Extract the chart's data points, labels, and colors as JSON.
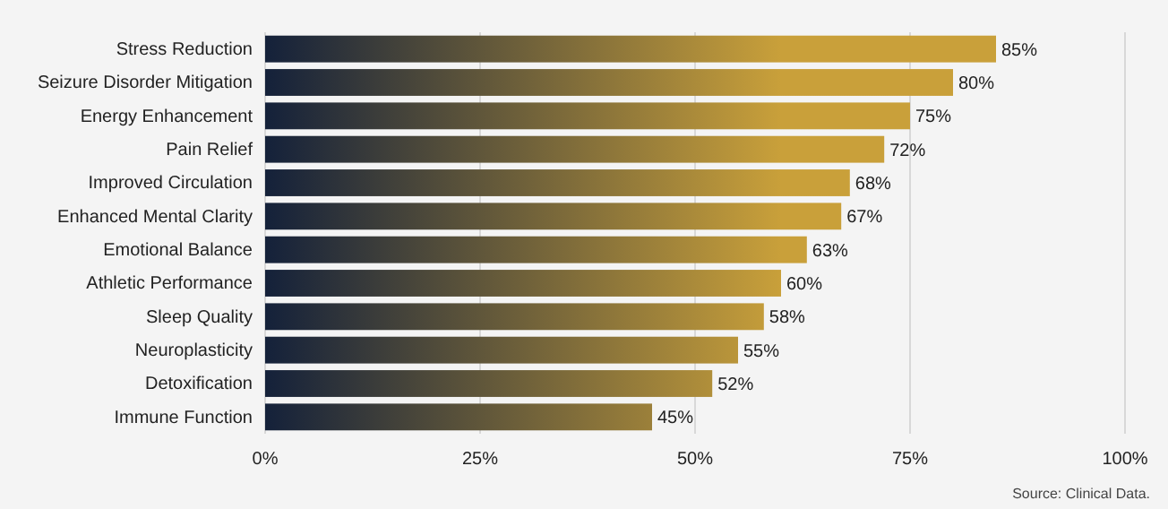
{
  "chart_data": {
    "type": "bar",
    "orientation": "horizontal",
    "categories": [
      "Stress Reduction",
      "Seizure Disorder Mitigation",
      "Energy Enhancement",
      "Pain Relief",
      "Improved Circulation",
      "Enhanced Mental Clarity",
      "Emotional Balance",
      "Athletic Performance",
      "Sleep Quality",
      "Neuroplasticity",
      "Detoxification",
      "Immune Function"
    ],
    "values": [
      85,
      80,
      75,
      72,
      68,
      67,
      63,
      60,
      58,
      55,
      52,
      45
    ],
    "color": "#c9a03a",
    "value_labels": [
      "85%",
      "80%",
      "75%",
      "72%",
      "68%",
      "67%",
      "63%",
      "60%",
      "58%",
      "55%",
      "52%",
      "45%"
    ],
    "xlim": [
      0,
      100
    ],
    "xticks": [
      {
        "value": 0,
        "label": "0%"
      },
      {
        "value": 25,
        "label": "25%"
      },
      {
        "value": 50,
        "label": "50%"
      },
      {
        "value": 75,
        "label": "75%"
      },
      {
        "value": 100,
        "label": "100%"
      }
    ],
    "grid": "x",
    "annotations": [
      "Source: Clinical Data."
    ]
  }
}
